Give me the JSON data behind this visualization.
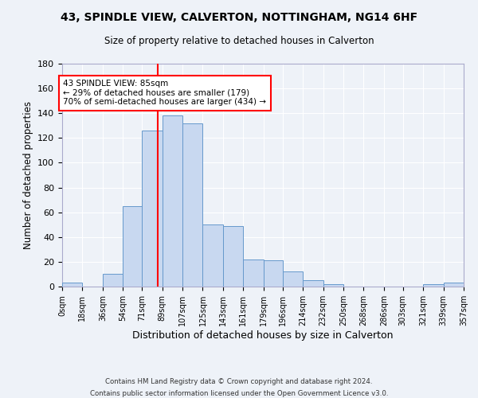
{
  "title": "43, SPINDLE VIEW, CALVERTON, NOTTINGHAM, NG14 6HF",
  "subtitle": "Size of property relative to detached houses in Calverton",
  "xlabel": "Distribution of detached houses by size in Calverton",
  "ylabel": "Number of detached properties",
  "bar_color": "#c8d8f0",
  "bar_edge_color": "#6699cc",
  "background_color": "#eef2f8",
  "grid_color": "#ffffff",
  "vline_x": 85,
  "vline_color": "red",
  "annotation_title": "43 SPINDLE VIEW: 85sqm",
  "annotation_line1": "← 29% of detached houses are smaller (179)",
  "annotation_line2": "70% of semi-detached houses are larger (434) →",
  "bin_edges": [
    0,
    18,
    36,
    54,
    71,
    89,
    107,
    125,
    143,
    161,
    179,
    196,
    214,
    232,
    250,
    268,
    286,
    303,
    321,
    339,
    357
  ],
  "bin_counts": [
    3,
    0,
    10,
    65,
    126,
    138,
    132,
    50,
    49,
    22,
    21,
    12,
    5,
    2,
    0,
    0,
    0,
    0,
    2,
    3
  ],
  "tick_labels": [
    "0sqm",
    "18sqm",
    "36sqm",
    "54sqm",
    "71sqm",
    "89sqm",
    "107sqm",
    "125sqm",
    "143sqm",
    "161sqm",
    "179sqm",
    "196sqm",
    "214sqm",
    "232sqm",
    "250sqm",
    "268sqm",
    "286sqm",
    "303sqm",
    "321sqm",
    "339sqm",
    "357sqm"
  ],
  "ylim": [
    0,
    180
  ],
  "yticks": [
    0,
    20,
    40,
    60,
    80,
    100,
    120,
    140,
    160,
    180
  ],
  "footer1": "Contains HM Land Registry data © Crown copyright and database right 2024.",
  "footer2": "Contains public sector information licensed under the Open Government Licence v3.0."
}
